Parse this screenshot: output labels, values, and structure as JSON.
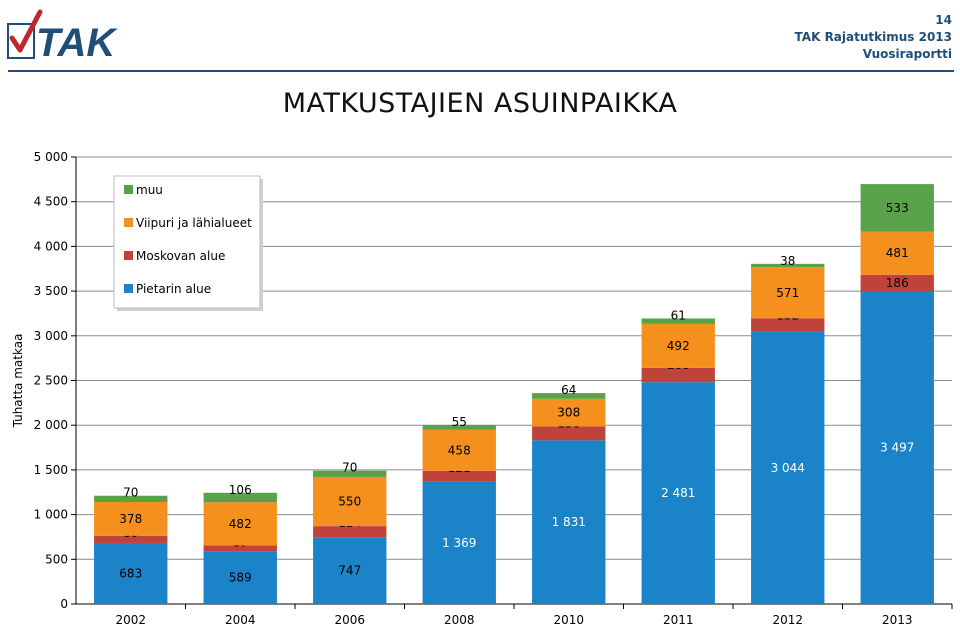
{
  "header": {
    "page_number": "14",
    "report_line1": "TAK Rajatutkimus 2013",
    "report_line2": "Vuosiraportti",
    "logo_text": "TAK"
  },
  "chart_data": {
    "type": "bar",
    "stacked": true,
    "title": "MATKUSTAJIEN ASUINPAIKKA",
    "ylabel": "Tuhatta matkaa",
    "xlabel": "",
    "ylim": [
      0,
      5000
    ],
    "yticks": [
      0,
      500,
      1000,
      1500,
      2000,
      2500,
      3000,
      3500,
      4000,
      4500,
      5000
    ],
    "ytick_labels": [
      "0",
      "500",
      "1 000",
      "1 500",
      "2 000",
      "2 500",
      "3 000",
      "3 500",
      "4 000",
      "4 500",
      "5 000"
    ],
    "categories": [
      "2002",
      "2004",
      "2006",
      "2008",
      "2010",
      "2011",
      "2012",
      "2013"
    ],
    "series": [
      {
        "name": "Pietarin alue",
        "color": "#1b84c8",
        "values": [
          683,
          589,
          747,
          1369,
          1831,
          2481,
          3044,
          3497
        ],
        "labels": [
          "683",
          "589",
          "747",
          "1 369",
          "1 831",
          "2 481",
          "3 044",
          "3 497"
        ]
      },
      {
        "name": "Moskovan alue",
        "color": "#c0433b",
        "values": [
          80,
          67,
          124,
          121,
          156,
          160,
          152,
          186
        ],
        "labels": [
          "80",
          "67",
          "124",
          "121",
          "156",
          "160",
          "152",
          "186"
        ]
      },
      {
        "name": "Viipuri ja lähialueet",
        "color": "#f5901e",
        "values": [
          378,
          482,
          550,
          458,
          308,
          492,
          571,
          481
        ],
        "labels": [
          "378",
          "482",
          "550",
          "458",
          "308",
          "492",
          "571",
          "481"
        ]
      },
      {
        "name": "muu",
        "color": "#5aa24a",
        "values": [
          70,
          106,
          70,
          55,
          64,
          61,
          38,
          533
        ],
        "labels": [
          "70",
          "106",
          "70",
          "55",
          "64",
          "61",
          "38",
          "533"
        ]
      }
    ],
    "legend": {
      "placement": "top-left",
      "order": [
        "muu",
        "Viipuri ja lähialueet",
        "Moskovan alue",
        "Pietarin alue"
      ]
    },
    "grid": true
  }
}
